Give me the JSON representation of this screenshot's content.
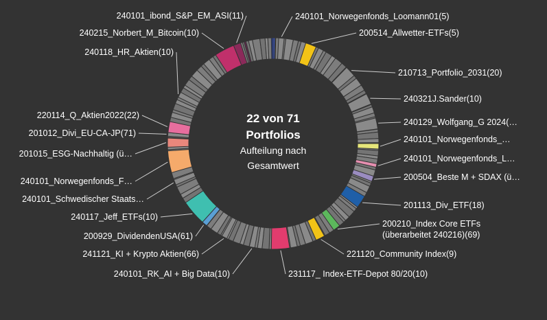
{
  "chart_data": {
    "type": "pie",
    "subtype": "donut",
    "center_title": "22 von 71",
    "center_title2": "Portfolios",
    "center_subtitle1": "Aufteilung nach",
    "center_subtitle2": "Gesamtwert",
    "start_angle_deg": 3,
    "filler_color": "#7a7a7a",
    "gap_color": "#333333",
    "highlighted": [
      {
        "label": "240101_Norwegenfonds_Loomann01(5)",
        "start": 3,
        "end": 6,
        "color": "#8a8a8a",
        "side": "right"
      },
      {
        "label": "200514_Allwetter-ETFs(5)",
        "start": 18,
        "end": 24,
        "color": "#f2c317",
        "side": "right"
      },
      {
        "label": "210713_Portfolio_2031(20)",
        "start": 44,
        "end": 50,
        "color": "#8a8a8a",
        "side": "right"
      },
      {
        "label": "240321J.Sander(10)",
        "start": 62,
        "end": 68,
        "color": "#8a8a8a",
        "side": "right"
      },
      {
        "label": "240129_Wolfgang_G 2024(…",
        "start": 76,
        "end": 82,
        "color": "#8a8a8a",
        "side": "right"
      },
      {
        "label": "240101_Norwegenfonds_…",
        "start": 90,
        "end": 93,
        "color": "#e6e67a",
        "side": "right"
      },
      {
        "label": "240101_Norwegenfonds_L…",
        "start": 101,
        "end": 103,
        "color": "#e58fb0",
        "side": "right"
      },
      {
        "label": "200504_Beste M + SDAX (ü…",
        "start": 108,
        "end": 111,
        "color": "#9a8cc0",
        "side": "right"
      },
      {
        "label": "201113_Div_ETF(18)",
        "start": 120,
        "end": 127,
        "color": "#1f5fa8",
        "side": "right"
      },
      {
        "label": "200210_Index Core ETFs (überarbeitet 240216)(69)",
        "start": 141,
        "end": 145,
        "color": "#5cb85c",
        "side": "right"
      },
      {
        "label": "221120_Community Index(9)",
        "start": 151,
        "end": 156,
        "color": "#f2c317",
        "side": "right"
      },
      {
        "label": "231117_ Index-ETF-Depot 80/20(10)",
        "start": 171,
        "end": 181,
        "color": "#e23c6e",
        "side": "right"
      },
      {
        "label": "240101_RK_AI + Big Data(10)",
        "start": 190,
        "end": 193,
        "color": "#8a8a8a",
        "side": "left"
      },
      {
        "label": "241121_KI + Krypto Aktien(66)",
        "start": 206,
        "end": 209,
        "color": "#8a8a8a",
        "side": "left"
      },
      {
        "label": "200929_DividendenUSA(61)",
        "start": 219,
        "end": 222,
        "color": "#5a9fd4",
        "side": "left"
      },
      {
        "label": "240117_Jeff_ETFs(10)",
        "start": 222,
        "end": 236,
        "color": "#3fbfb0",
        "side": "left"
      },
      {
        "label": "240101_Schwedischer Staats…",
        "start": 247,
        "end": 250,
        "color": "#8a8a8a",
        "side": "left"
      },
      {
        "label": "240101_Norwegenfonds_F…",
        "start": 254,
        "end": 266,
        "color": "#f5aa6b",
        "side": "left"
      },
      {
        "label": "201015_ESG-Nachhaltig (ü…",
        "start": 268,
        "end": 273,
        "color": "#e8877c",
        "side": "left"
      },
      {
        "label": "201012_Divi_EU-CA-JP(71)",
        "start": 274,
        "end": 276,
        "color": "#8a8a8a",
        "side": "left"
      },
      {
        "label": "220114_Q_Aktien2022(22)",
        "start": 276,
        "end": 282,
        "color": "#e76e9e",
        "side": "left"
      },
      {
        "label": "240118_HR_Aktien(10)",
        "start": 296,
        "end": 299,
        "color": "#8a8a8a",
        "side": "left"
      },
      {
        "label": "240215_Norbert_M_Bitcoin(10)",
        "start": 327,
        "end": 338,
        "color": "#c0306b",
        "side": "left"
      },
      {
        "label": "240101_ibond_S&P_EM_ASI(11)",
        "start": 338,
        "end": 342,
        "color": "#8b2a5a",
        "side": "left"
      }
    ],
    "accents": [
      {
        "start": 359,
        "end": 360,
        "color": "#2a3f8a"
      },
      {
        "start": 0,
        "end": 1,
        "color": "#3b56b8"
      },
      {
        "start": 21,
        "end": 22,
        "color": "#e0802a"
      },
      {
        "start": 125,
        "end": 126,
        "color": "#16407a"
      },
      {
        "start": 344,
        "end": 345,
        "color": "#5b2a4a"
      }
    ]
  }
}
